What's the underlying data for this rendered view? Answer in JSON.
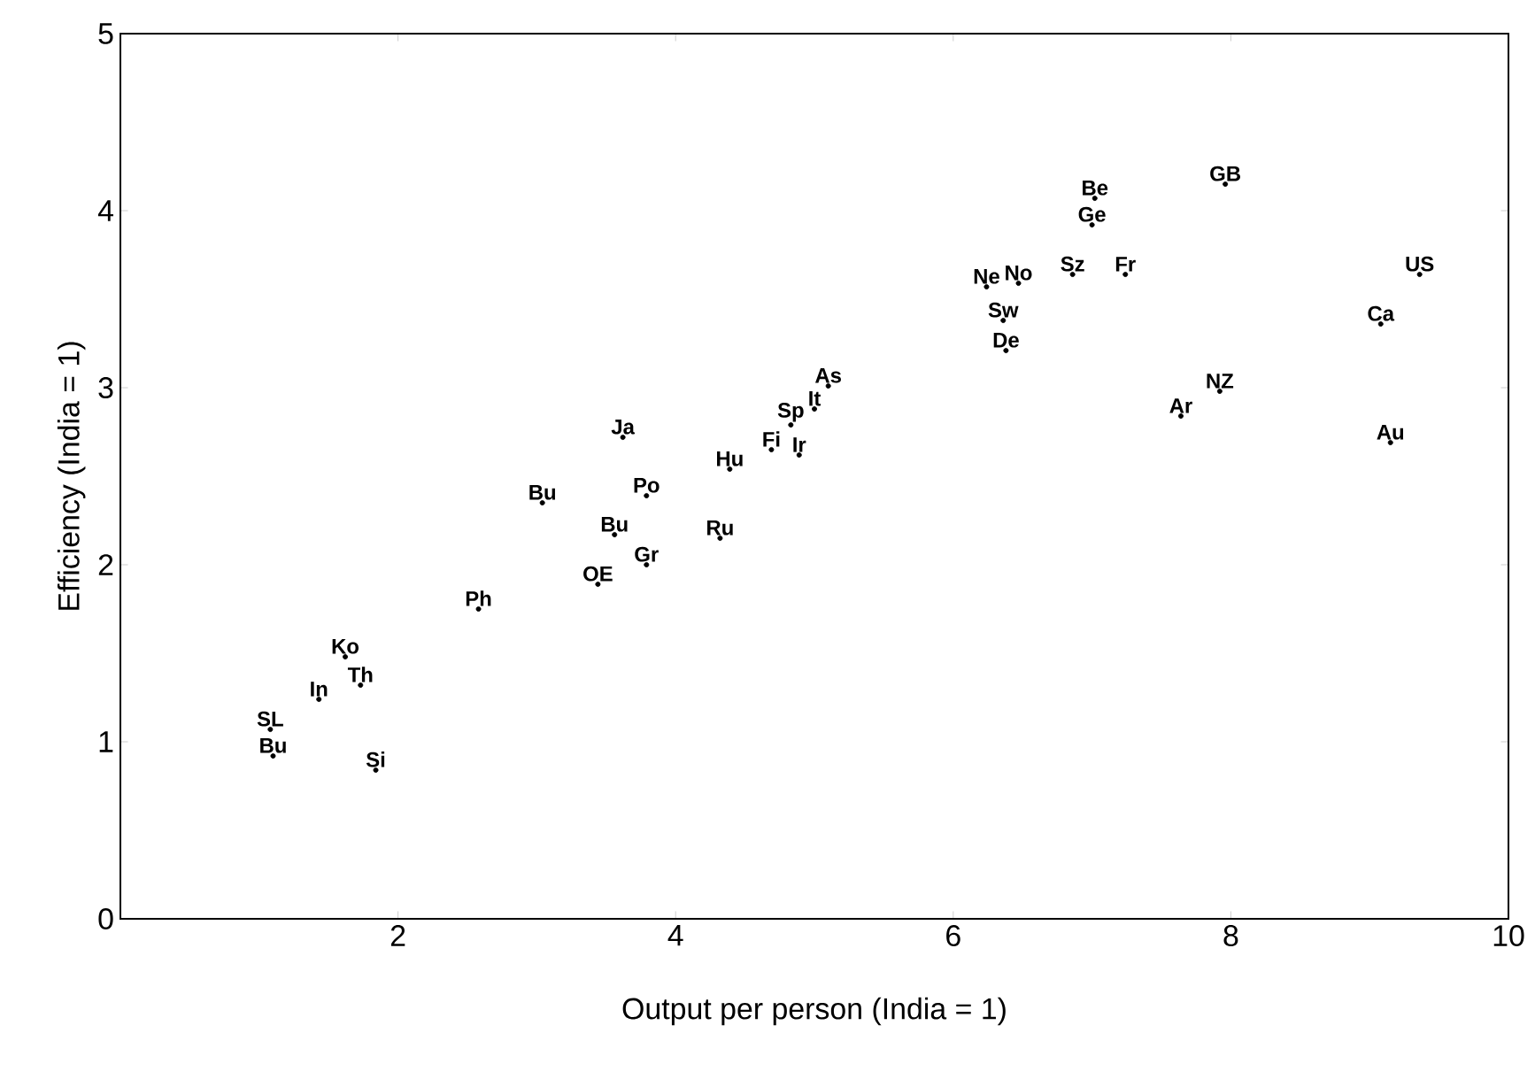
{
  "chart_data": {
    "type": "scatter",
    "xlabel": "Output per person (India = 1)",
    "ylabel": "Efficiency (India = 1)",
    "xlim": [
      0,
      10
    ],
    "ylim": [
      0,
      5
    ],
    "xticks": [
      2,
      4,
      6,
      8,
      10
    ],
    "yticks": [
      0,
      1,
      2,
      3,
      4,
      5
    ],
    "marker": "circle",
    "grid": false,
    "series": [
      {
        "color": "#000000",
        "x": [
          7.02,
          7.96,
          7.0,
          9.36,
          6.24,
          6.47,
          6.86,
          7.24,
          6.36,
          9.08,
          6.38,
          5.1,
          7.92,
          5.0,
          7.64,
          4.83,
          3.62,
          9.15,
          4.69,
          4.89,
          4.39,
          3.79,
          3.04,
          3.56,
          4.32,
          3.79,
          3.44,
          2.58,
          1.62,
          1.73,
          1.43,
          1.08,
          1.1,
          1.84
        ],
        "values": [
          4.07,
          4.15,
          3.92,
          3.64,
          3.57,
          3.59,
          3.64,
          3.64,
          3.38,
          3.36,
          3.21,
          3.01,
          2.98,
          2.88,
          2.84,
          2.79,
          2.72,
          2.69,
          2.65,
          2.62,
          2.54,
          2.39,
          2.35,
          2.17,
          2.15,
          2.0,
          1.89,
          1.75,
          1.48,
          1.32,
          1.24,
          1.07,
          0.92,
          0.84
        ],
        "value_labels": [
          "Be",
          "GB",
          "Ge",
          "US",
          "Ne",
          "No",
          "Sz",
          "Fr",
          "Sw",
          "Ca",
          "De",
          "As",
          "NZ",
          "It",
          "Ar",
          "Sp",
          "Ja",
          "Au",
          "Fi",
          "Ir",
          "Hu",
          "Po",
          "Bu",
          "Bu",
          "Ru",
          "Gr",
          "OE",
          "Ph",
          "Ko",
          "Th",
          "In",
          "SL",
          "Bu",
          "Si"
        ]
      }
    ]
  }
}
